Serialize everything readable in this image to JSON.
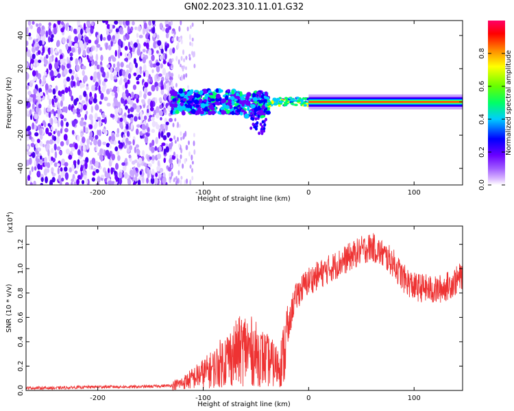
{
  "chart_data": [
    {
      "type": "heatmap",
      "title": "GN02.2023.310.11.01.G32",
      "xlabel": "Height of straight line (km)",
      "ylabel": "Frequency (Hz)",
      "xlim": [
        -268,
        146
      ],
      "ylim": [
        -50,
        49
      ],
      "xticks": [
        -200,
        -100,
        0,
        100
      ],
      "yticks": [
        -40,
        -20,
        0,
        20,
        40
      ],
      "colorbar": {
        "label": "Normalized spectral amplitude",
        "range": [
          0.0,
          1.0
        ],
        "ticks": [
          0.0,
          0.2,
          0.4,
          0.6,
          0.8
        ],
        "colormap": [
          "#ffffff",
          "#d8b4ff",
          "#a05cff",
          "#6a00ff",
          "#0000ff",
          "#00ccff",
          "#00ff66",
          "#66ff00",
          "#ffff00",
          "#ff8800",
          "#ff0000",
          "#ff0066"
        ]
      },
      "regions": [
        {
          "x_range": [
            -268,
            -130
          ],
          "freq_spread": [
            -50,
            49
          ],
          "amplitude": "0.05-0.3 (scattered)"
        },
        {
          "x_range": [
            -130,
            -40
          ],
          "freq_center": 0,
          "freq_spread": [
            -20,
            10
          ],
          "amplitude": "0.2-0.5"
        },
        {
          "x_range": [
            -40,
            0
          ],
          "freq_center": 0,
          "freq_spread": [
            -3,
            3
          ],
          "amplitude": "0.4-0.9"
        },
        {
          "x_range": [
            0,
            146
          ],
          "freq_center": 0,
          "freq_spread": [
            -2,
            2
          ],
          "amplitude": "1.0 (peak line)"
        }
      ]
    },
    {
      "type": "line",
      "title": "",
      "xlabel": "Height of straight line (km)",
      "ylabel": "SNR (10 * v/v)",
      "multiplier": "(x10",
      "multiplier_exp": "4",
      "xlim": [
        -268,
        146
      ],
      "ylim": [
        0.0,
        1.35
      ],
      "xticks": [
        -200,
        -100,
        0,
        100
      ],
      "yticks": [
        0.0,
        0.2,
        0.4,
        0.6,
        0.8,
        1.0,
        1.2
      ],
      "color": "#ee3333",
      "series": [
        {
          "x": [
            -268,
            -240,
            -200,
            -160,
            -130,
            -120,
            -110,
            -100,
            -90,
            -80,
            -70,
            -60,
            -50,
            -40,
            -30,
            -25,
            -20,
            -15,
            -10,
            -5,
            0,
            10,
            20,
            30,
            40,
            50,
            60,
            70,
            80,
            90,
            100,
            110,
            120,
            130,
            140,
            146
          ],
          "y": [
            0.02,
            0.02,
            0.03,
            0.03,
            0.04,
            0.06,
            0.1,
            0.14,
            0.18,
            0.25,
            0.3,
            0.35,
            0.3,
            0.25,
            0.2,
            0.25,
            0.45,
            0.7,
            0.8,
            0.85,
            0.9,
            0.95,
            1.0,
            1.05,
            1.1,
            1.15,
            1.18,
            1.12,
            1.05,
            0.92,
            0.85,
            0.84,
            0.82,
            0.85,
            0.9,
            0.95
          ]
        }
      ]
    }
  ]
}
